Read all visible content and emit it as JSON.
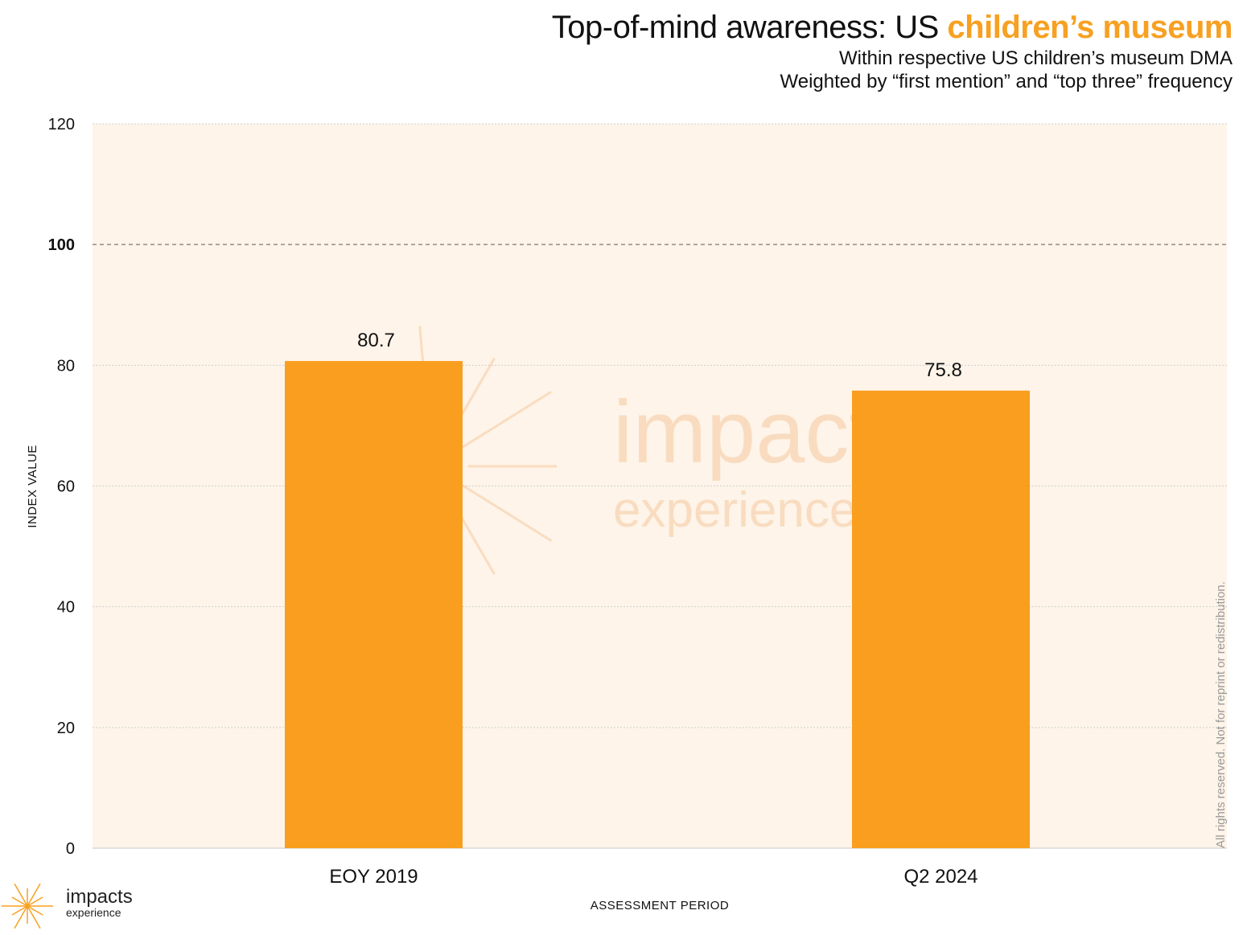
{
  "header": {
    "title_plain": "Top-of-mind awareness: US ",
    "title_accent": "children’s museum",
    "subtitle_line1": "Within respective US children’s museum DMA",
    "subtitle_line2": "Weighted by “first mention” and “top three” frequency"
  },
  "colors": {
    "accent": "#f7a021",
    "bar": "#f99e1e",
    "plot_background": "#fef4e9",
    "gridline": "#cfcfcf",
    "reference_line": "#9a8a7a"
  },
  "chart_data": {
    "type": "bar",
    "categories": [
      "EOY 2019",
      "Q2 2024"
    ],
    "values": [
      80.7,
      75.8
    ],
    "data_labels": [
      "80.7",
      "75.8"
    ],
    "xlabel": "ASSESSMENT PERIOD",
    "ylabel": "INDEX VALUE",
    "ylim": [
      0,
      120
    ],
    "yticks": [
      0,
      20,
      40,
      60,
      80,
      100,
      120
    ],
    "reference_line": 100,
    "grid": true
  },
  "watermark": {
    "line1": "impacts",
    "line2": "experience"
  },
  "footer": {
    "rights": "All rights reserved. Not for reprint or redistribution.",
    "logo_main": "impacts",
    "logo_sub": "experience"
  }
}
